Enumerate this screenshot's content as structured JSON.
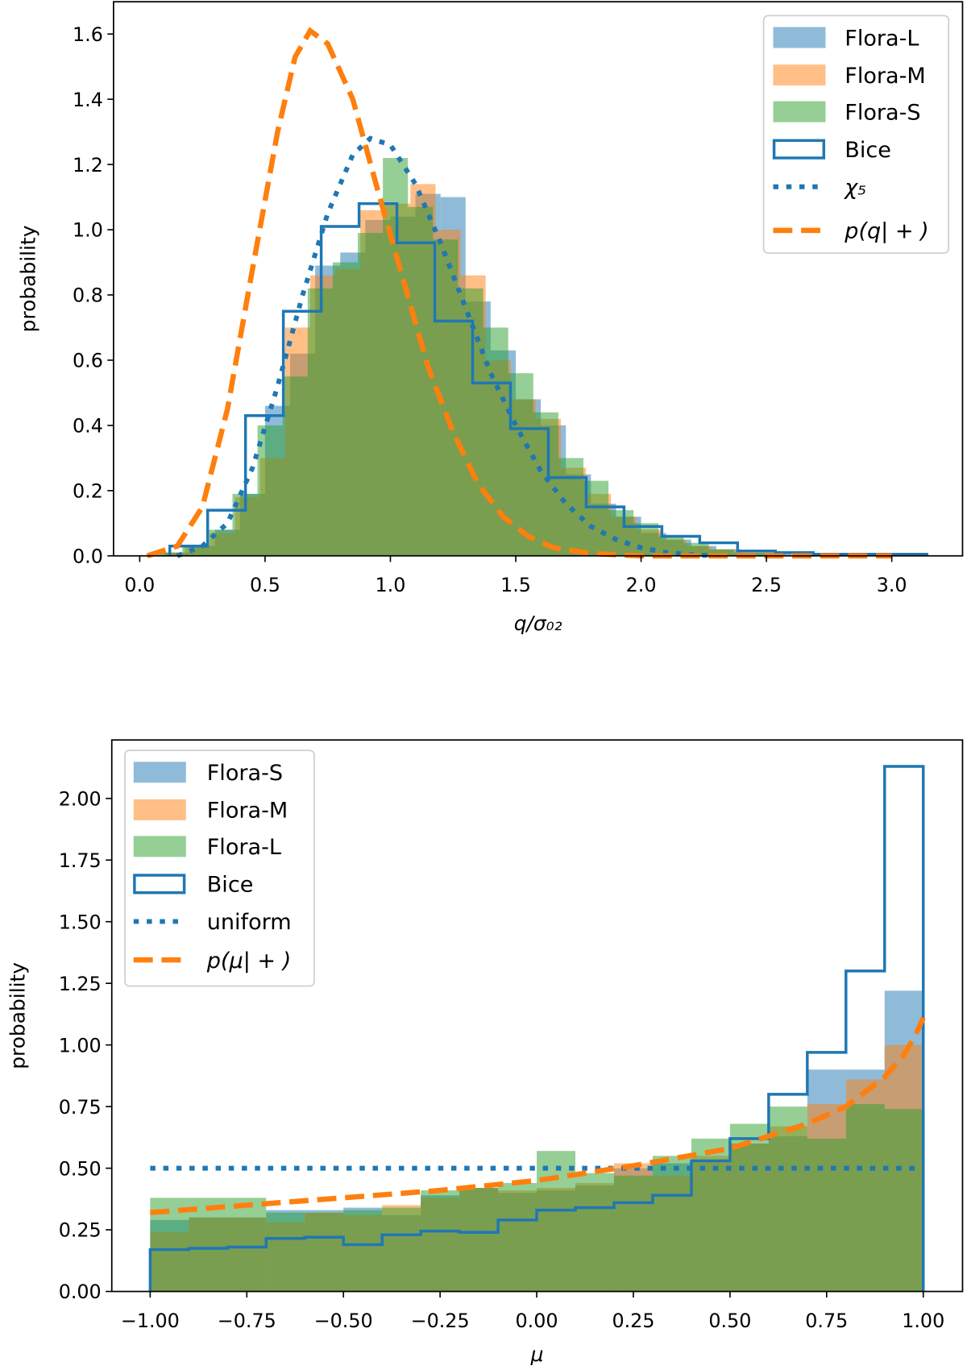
{
  "colors": {
    "blue": "#1f77b4",
    "orange": "#ff7f0e",
    "green": "#2ca02c"
  },
  "chart_data": [
    {
      "type": "histogram+line",
      "xlabel": "q/σ₀₂",
      "ylabel": "probability",
      "xlim": [
        -0.1,
        3.32
      ],
      "ylim": [
        0,
        1.7
      ],
      "xticks": [
        "0.0",
        "0.5",
        "1.0",
        "1.5",
        "2.0",
        "2.5",
        "3.0"
      ],
      "xtick_values": [
        0,
        0.5,
        1,
        1.5,
        2,
        2.5,
        3
      ],
      "yticks": [
        "0.0",
        "0.2",
        "0.4",
        "0.6",
        "0.8",
        "1.0",
        "1.2",
        "1.4",
        "1.6"
      ],
      "ytick_values": [
        0,
        0.2,
        0.4,
        0.6,
        0.8,
        1.0,
        1.2,
        1.4,
        1.6
      ],
      "grid": false,
      "legend": "top-right",
      "series": [
        {
          "name": "Flora-L",
          "kind": "hist",
          "color": "#1f77b4",
          "bin_start": 0.1,
          "bin_width": 0.1,
          "values": [
            0.01,
            0.03,
            0.08,
            0.19,
            0.46,
            0.62,
            0.89,
            0.93,
            1.03,
            1.04,
            1.11,
            1.1,
            0.78,
            0.63,
            0.48,
            0.4,
            0.25,
            0.16,
            0.12,
            0.07,
            0.05,
            0.03,
            0.02,
            0.01,
            0.01
          ]
        },
        {
          "name": "Flora-M",
          "kind": "hist",
          "color": "#ff7f0e",
          "bin_start": 0.08,
          "bin_width": 0.1,
          "values": [
            0.01,
            0.03,
            0.07,
            0.18,
            0.3,
            0.7,
            0.86,
            0.88,
            1.06,
            1.08,
            1.14,
            1.0,
            0.86,
            0.6,
            0.48,
            0.42,
            0.27,
            0.19,
            0.12,
            0.08,
            0.05,
            0.03,
            0.02,
            0.01,
            0.01
          ]
        },
        {
          "name": "Flora-S",
          "kind": "hist",
          "color": "#2ca02c",
          "bin_start": 0.07,
          "bin_width": 0.1,
          "values": [
            0.01,
            0.03,
            0.08,
            0.19,
            0.4,
            0.55,
            0.82,
            0.9,
            0.99,
            1.22,
            1.07,
            0.97,
            0.82,
            0.7,
            0.56,
            0.44,
            0.3,
            0.23,
            0.14,
            0.1,
            0.06,
            0.04,
            0.02,
            0.01,
            0.01
          ]
        },
        {
          "name": "Bice",
          "kind": "step",
          "color": "#1f77b4",
          "bin_start": 0.12,
          "bin_width": 0.151,
          "values": [
            0.03,
            0.14,
            0.43,
            0.75,
            1.01,
            1.08,
            0.96,
            0.72,
            0.53,
            0.39,
            0.24,
            0.15,
            0.09,
            0.06,
            0.04,
            0.015,
            0.01,
            0.005,
            0.005,
            0.005
          ]
        },
        {
          "name": "χ₅",
          "kind": "dotted",
          "color": "#1f77b4",
          "x": [
            0.15,
            0.25,
            0.35,
            0.45,
            0.55,
            0.65,
            0.75,
            0.85,
            0.92,
            1.0,
            1.1,
            1.2,
            1.3,
            1.4,
            1.5,
            1.6,
            1.7,
            1.8,
            1.9,
            2.0,
            2.1,
            2.2,
            2.3
          ],
          "y": [
            0,
            0.03,
            0.1,
            0.27,
            0.52,
            0.8,
            1.05,
            1.23,
            1.28,
            1.26,
            1.14,
            0.96,
            0.76,
            0.56,
            0.4,
            0.26,
            0.16,
            0.09,
            0.05,
            0.025,
            0.01,
            0.004,
            0
          ]
        },
        {
          "name": "p(q| + )",
          "kind": "dashed",
          "color": "#ff7f0e",
          "x": [
            0.03,
            0.15,
            0.25,
            0.35,
            0.45,
            0.55,
            0.62,
            0.68,
            0.75,
            0.85,
            0.95,
            1.05,
            1.15,
            1.25,
            1.35,
            1.45,
            1.55,
            1.65,
            1.8,
            2.0,
            3.0
          ],
          "y": [
            0,
            0.03,
            0.15,
            0.45,
            0.88,
            1.3,
            1.53,
            1.61,
            1.57,
            1.4,
            1.12,
            0.85,
            0.58,
            0.38,
            0.22,
            0.12,
            0.06,
            0.025,
            0.007,
            0,
            0
          ]
        }
      ]
    },
    {
      "type": "histogram+line",
      "xlabel": "μ",
      "ylabel": "probability",
      "xlim": [
        -1.1,
        1.1
      ],
      "ylim": [
        0,
        2.24
      ],
      "xticks": [
        "−1.00",
        "−0.75",
        "−0.50",
        "−0.25",
        "0.00",
        "0.25",
        "0.50",
        "0.75",
        "1.00"
      ],
      "xtick_values": [
        -1,
        -0.75,
        -0.5,
        -0.25,
        0,
        0.25,
        0.5,
        0.75,
        1
      ],
      "yticks": [
        "0.00",
        "0.25",
        "0.50",
        "0.75",
        "1.00",
        "1.25",
        "1.50",
        "1.75",
        "2.00"
      ],
      "ytick_values": [
        0,
        0.25,
        0.5,
        0.75,
        1,
        1.25,
        1.5,
        1.75,
        2
      ],
      "grid": false,
      "legend": "top-left",
      "series": [
        {
          "name": "Flora-S",
          "kind": "hist",
          "color": "#1f77b4",
          "bin_start": -1.0,
          "bin_width": 0.1,
          "values": [
            0.29,
            0.3,
            0.3,
            0.33,
            0.33,
            0.34,
            0.31,
            0.39,
            0.42,
            0.4,
            0.41,
            0.43,
            0.5,
            0.52,
            0.53,
            0.6,
            0.63,
            0.9,
            0.9,
            1.22
          ]
        },
        {
          "name": "Flora-M",
          "kind": "hist",
          "color": "#ff7f0e",
          "bin_start": -1.0,
          "bin_width": 0.1,
          "values": [
            0.24,
            0.3,
            0.3,
            0.28,
            0.32,
            0.31,
            0.35,
            0.38,
            0.42,
            0.41,
            0.42,
            0.44,
            0.52,
            0.47,
            0.55,
            0.6,
            0.67,
            0.76,
            0.86,
            1.0
          ]
        },
        {
          "name": "Flora-L",
          "kind": "hist",
          "color": "#2ca02c",
          "bin_start": -1.0,
          "bin_width": 0.1,
          "values": [
            0.38,
            0.38,
            0.38,
            0.32,
            0.32,
            0.33,
            0.34,
            0.41,
            0.42,
            0.44,
            0.57,
            0.48,
            0.47,
            0.55,
            0.62,
            0.68,
            0.75,
            0.62,
            0.76,
            0.74
          ]
        },
        {
          "name": "Bice",
          "kind": "step",
          "color": "#1f77b4",
          "bin_start": -1.0,
          "bin_width": 0.1,
          "values": [
            0.17,
            0.175,
            0.18,
            0.215,
            0.22,
            0.19,
            0.23,
            0.245,
            0.24,
            0.29,
            0.33,
            0.34,
            0.36,
            0.39,
            0.53,
            0.62,
            0.8,
            0.97,
            1.3,
            2.13
          ]
        },
        {
          "name": "uniform",
          "kind": "dotted",
          "color": "#1f77b4",
          "x": [
            -1,
            1
          ],
          "y": [
            0.5,
            0.5
          ]
        },
        {
          "name": "p(μ| + )",
          "kind": "dashed",
          "color": "#ff7f0e",
          "x": [
            -1,
            -0.75,
            -0.5,
            -0.25,
            0,
            0.25,
            0.5,
            0.7,
            0.8,
            0.9,
            0.95,
            0.98,
            1.0
          ],
          "y": [
            0.32,
            0.35,
            0.38,
            0.41,
            0.45,
            0.51,
            0.58,
            0.68,
            0.75,
            0.87,
            0.96,
            1.04,
            1.11
          ]
        }
      ]
    }
  ]
}
